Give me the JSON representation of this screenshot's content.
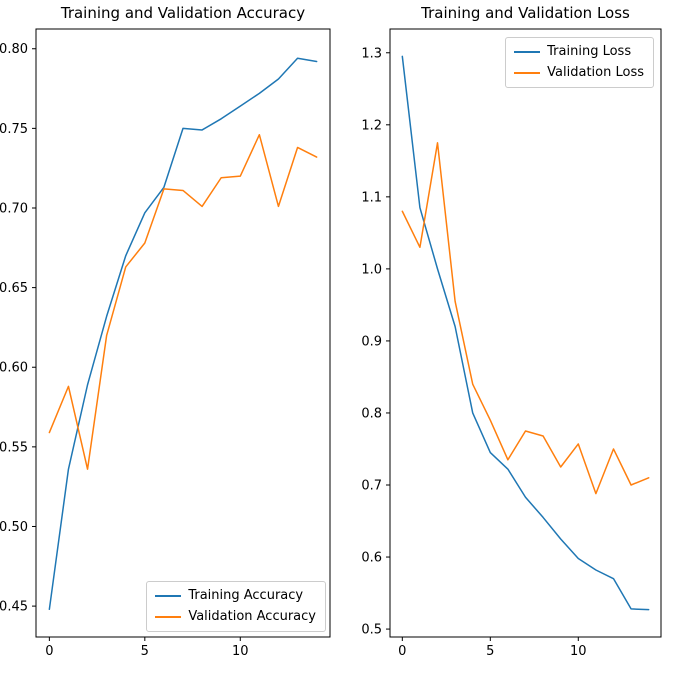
{
  "figure": {
    "background": "#ffffff"
  },
  "colors": {
    "training": "#1f77b4",
    "validation": "#ff7f0e"
  },
  "chart_data": [
    {
      "type": "line",
      "title": "Training and Validation Accuracy",
      "xlabel": "",
      "ylabel": "",
      "grid": false,
      "legend_position": "lower right",
      "x": [
        0,
        1,
        2,
        3,
        4,
        5,
        6,
        7,
        8,
        9,
        10,
        11,
        12,
        13,
        14
      ],
      "xlim": [
        -0.7,
        14.7
      ],
      "ylim": [
        0.4306,
        0.8124
      ],
      "xticks": [
        0,
        5,
        10
      ],
      "xtick_labels": [
        "0",
        "5",
        "10"
      ],
      "yticks": [
        0.45,
        0.5,
        0.55,
        0.6,
        0.65,
        0.7,
        0.75,
        0.8
      ],
      "ytick_labels": [
        "0.45",
        "0.50",
        "0.55",
        "0.60",
        "0.65",
        "0.70",
        "0.75",
        "0.80"
      ],
      "series": [
        {
          "name": "Training Accuracy",
          "color": "#1f77b4",
          "values": [
            0.448,
            0.536,
            0.589,
            0.632,
            0.67,
            0.697,
            0.713,
            0.75,
            0.749,
            0.756,
            0.764,
            0.772,
            0.781,
            0.794,
            0.792
          ]
        },
        {
          "name": "Validation Accuracy",
          "color": "#ff7f0e",
          "values": [
            0.559,
            0.588,
            0.536,
            0.62,
            0.663,
            0.678,
            0.712,
            0.711,
            0.701,
            0.719,
            0.72,
            0.746,
            0.701,
            0.738,
            0.732
          ]
        }
      ]
    },
    {
      "type": "line",
      "title": "Training and Validation Loss",
      "xlabel": "",
      "ylabel": "",
      "grid": false,
      "legend_position": "upper right",
      "x": [
        0,
        1,
        2,
        3,
        4,
        5,
        6,
        7,
        8,
        9,
        10,
        11,
        12,
        13,
        14
      ],
      "xlim": [
        -0.7,
        14.7
      ],
      "ylim": [
        0.489,
        1.333
      ],
      "xticks": [
        0,
        5,
        10
      ],
      "xtick_labels": [
        "0",
        "5",
        "10"
      ],
      "yticks": [
        0.5,
        0.6,
        0.7,
        0.8,
        0.9,
        1.0,
        1.1,
        1.2,
        1.3
      ],
      "ytick_labels": [
        "0.5",
        "0.6",
        "0.7",
        "0.8",
        "0.9",
        "1.0",
        "1.1",
        "1.2",
        "1.3"
      ],
      "series": [
        {
          "name": "Training Loss",
          "color": "#1f77b4",
          "values": [
            1.295,
            1.085,
            1.0,
            0.92,
            0.8,
            0.745,
            0.722,
            0.683,
            0.655,
            0.625,
            0.598,
            0.582,
            0.57,
            0.528,
            0.527
          ]
        },
        {
          "name": "Validation Loss",
          "color": "#ff7f0e",
          "values": [
            1.08,
            1.03,
            1.175,
            0.955,
            0.84,
            0.79,
            0.735,
            0.775,
            0.768,
            0.725,
            0.757,
            0.688,
            0.75,
            0.7,
            0.71
          ]
        }
      ]
    }
  ]
}
